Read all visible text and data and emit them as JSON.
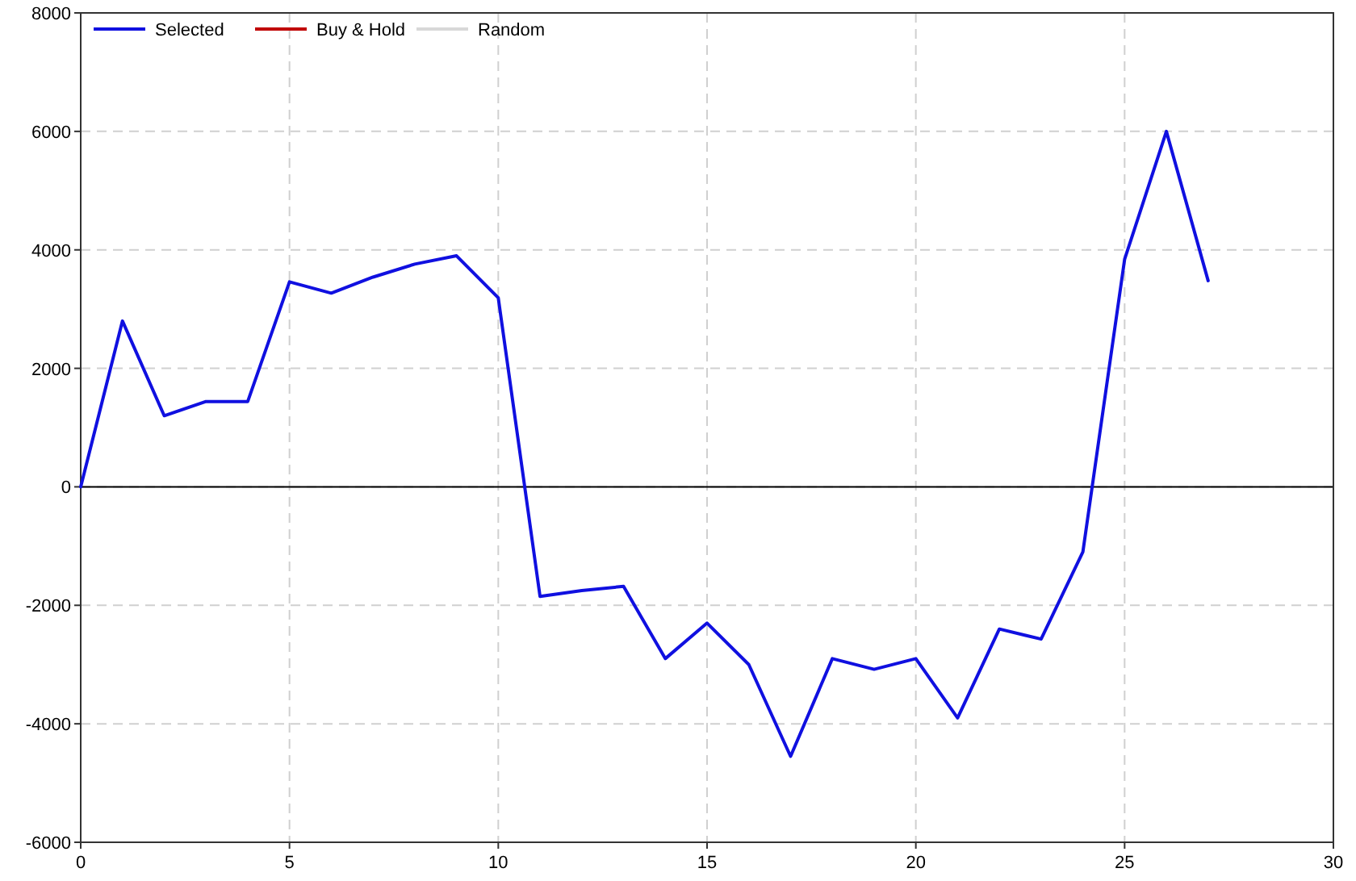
{
  "chart_data": {
    "type": "line",
    "x": [
      0,
      1,
      2,
      3,
      4,
      5,
      6,
      7,
      8,
      9,
      10,
      11,
      12,
      13,
      14,
      15,
      16,
      17,
      18,
      19,
      20,
      21,
      22,
      23,
      24,
      25,
      26,
      27
    ],
    "series": [
      {
        "name": "Selected",
        "color": "#1010e0",
        "values": [
          0,
          2800,
          1200,
          1440,
          1440,
          3460,
          3270,
          3540,
          3760,
          3900,
          3190,
          -1850,
          -1750,
          -1680,
          -2900,
          -2300,
          -3000,
          -4550,
          -2900,
          -3080,
          -2900,
          -3900,
          -2400,
          -2570,
          -1100,
          3840,
          6000,
          3480
        ]
      },
      {
        "name": "Buy & Hold",
        "color": "#c00000",
        "values": [
          null,
          null,
          null,
          null,
          null,
          null,
          null,
          null,
          null,
          null,
          null,
          null,
          null,
          null,
          null,
          null,
          null,
          null,
          null,
          null,
          null,
          null,
          null,
          null,
          null,
          null,
          null,
          null
        ]
      },
      {
        "name": "Random",
        "color": "#d8d8d8",
        "values": [
          null,
          null,
          null,
          null,
          null,
          null,
          null,
          null,
          null,
          null,
          null,
          null,
          null,
          null,
          null,
          null,
          null,
          null,
          null,
          null,
          null,
          null,
          null,
          null,
          null,
          null,
          null,
          null
        ]
      }
    ],
    "xlim": [
      0,
      30
    ],
    "xticks": [
      0,
      5,
      10,
      15,
      20,
      25,
      30
    ],
    "ylim": [
      -6000,
      8000
    ],
    "yticks": [
      -6000,
      -4000,
      -2000,
      0,
      2000,
      4000,
      6000,
      8000
    ],
    "grid": true,
    "legend": "top left",
    "ref_lines": [
      {
        "axis": "y",
        "value": 0,
        "color": "#000000"
      }
    ]
  }
}
